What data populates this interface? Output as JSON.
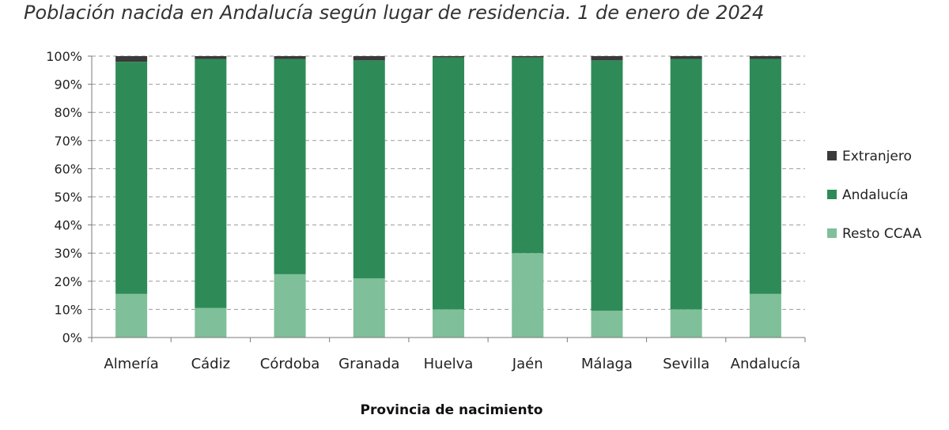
{
  "chart_data": {
    "type": "bar",
    "stacked": true,
    "title": "Población nacida en Andalucía según lugar de residencia. 1 de enero de 2024",
    "xlabel": "Provincia de nacimiento",
    "ylabel": "",
    "ylim": [
      0,
      100
    ],
    "yticks": [
      "0%",
      "10%",
      "20%",
      "30%",
      "40%",
      "50%",
      "60%",
      "70%",
      "80%",
      "90%",
      "100%"
    ],
    "grid": "horizontal-dashed",
    "legend_position": "right",
    "categories": [
      "Almería",
      "Cádiz",
      "Córdoba",
      "Granada",
      "Huelva",
      "Jaén",
      "Málaga",
      "Sevilla",
      "Andalucía"
    ],
    "series": [
      {
        "name": "Resto CCAA",
        "color": "#7fbf9a",
        "values": [
          15.5,
          10.5,
          22.5,
          21.0,
          10.0,
          30.0,
          9.5,
          10.0,
          15.5
        ]
      },
      {
        "name": "Andalucía",
        "color": "#2e8b57",
        "values": [
          82.5,
          88.5,
          76.5,
          77.5,
          89.5,
          69.5,
          89.0,
          89.0,
          83.5
        ]
      },
      {
        "name": "Extranjero",
        "color": "#3a3a3a",
        "values": [
          2.0,
          1.0,
          1.0,
          1.5,
          0.5,
          0.5,
          1.5,
          1.0,
          1.0
        ]
      }
    ],
    "legend_order": [
      "Extranjero",
      "Andalucía",
      "Resto CCAA"
    ]
  }
}
